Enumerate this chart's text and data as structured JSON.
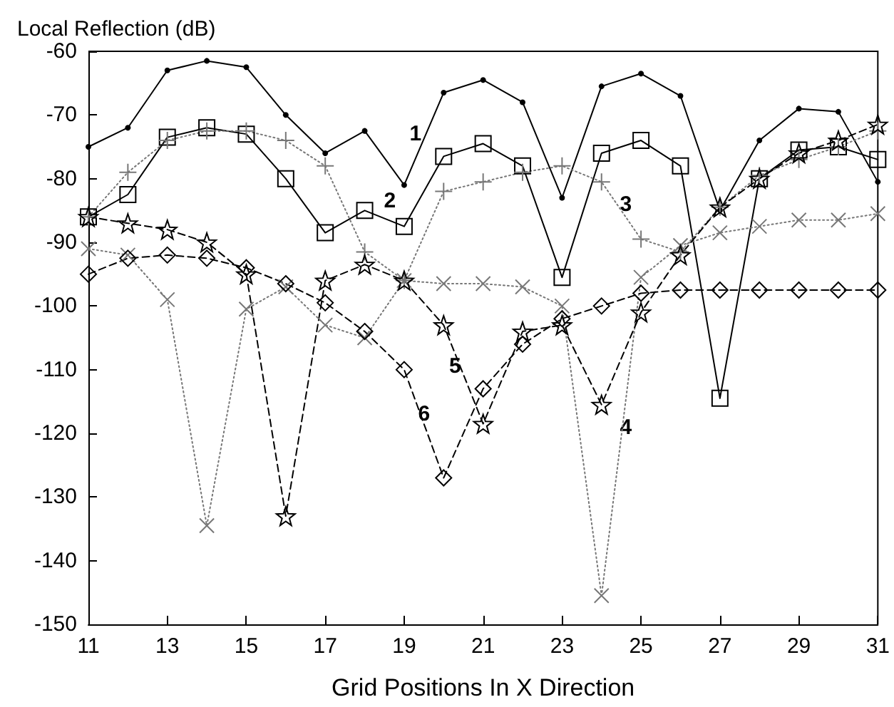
{
  "chart_data": {
    "type": "line",
    "ylabel": "Local Reflection (dB)",
    "xlabel": "Grid Positions In X Direction",
    "x": [
      11,
      12,
      13,
      14,
      15,
      16,
      17,
      18,
      19,
      20,
      21,
      22,
      23,
      24,
      25,
      26,
      27,
      28,
      29,
      30,
      31
    ],
    "xlim": [
      11,
      31
    ],
    "xticks": [
      11,
      13,
      15,
      17,
      19,
      21,
      23,
      25,
      27,
      29,
      31
    ],
    "ylim": [
      -150,
      -60
    ],
    "yticks": [
      -150,
      -140,
      -130,
      -120,
      -110,
      -100,
      -90,
      -80,
      -70,
      -60
    ],
    "grid": false,
    "series": [
      {
        "name": "1",
        "color": "#000000",
        "marker": "circle",
        "line_style": "solid",
        "values": [
          -75,
          -72,
          -63,
          -61.5,
          -62.5,
          -70,
          -76,
          -72.5,
          -81,
          -66.5,
          -64.5,
          -68,
          -83,
          -65.5,
          -63.5,
          -67,
          -85,
          -74,
          -69,
          -69.5,
          -80.5
        ]
      },
      {
        "name": "2",
        "color": "#000000",
        "marker": "square",
        "line_style": "solid",
        "values": [
          -86,
          -82.5,
          -73.5,
          -72,
          -73,
          -80,
          -88.5,
          -85,
          -87.5,
          -76.5,
          -74.5,
          -78,
          -95.5,
          -76,
          -74,
          -78,
          -114.5,
          -80,
          -75.5,
          -75,
          -77
        ]
      },
      {
        "name": "3",
        "color": "#777777",
        "marker": "plus",
        "line_style": "dotted",
        "values": [
          -86,
          -79,
          -74,
          -72.5,
          -72.5,
          -74,
          -78,
          -91.5,
          -96,
          -82,
          -80.5,
          -79,
          -78,
          -80.5,
          -89.5,
          -91.5,
          -84.5,
          -79.5,
          -77,
          -75,
          -72.5
        ]
      },
      {
        "name": "4",
        "color": "#777777",
        "marker": "cross",
        "line_style": "dotted",
        "values": [
          -91,
          -92,
          -99,
          -134.5,
          -100.5,
          -97,
          -103,
          -105,
          -96,
          -96.5,
          -96.5,
          -97,
          -100,
          -145.5,
          -95.5,
          -90.5,
          -88.5,
          -87.5,
          -86.5,
          -86.5,
          -85.5
        ]
      },
      {
        "name": "5",
        "color": "#000000",
        "marker": "star",
        "line_style": "dashed",
        "values": [
          -86,
          -87,
          -88,
          -90,
          -95,
          -133,
          -96,
          -93.5,
          -96,
          -103,
          -118.5,
          -104,
          -103,
          -115.5,
          -101,
          -92,
          -84.5,
          -80,
          -76,
          -74,
          -71.5
        ]
      },
      {
        "name": "6",
        "color": "#000000",
        "marker": "diamond",
        "line_style": "dashed",
        "values": [
          -95,
          -92.5,
          -92,
          -92.5,
          -94,
          -96.5,
          -99.5,
          -104,
          -110,
          -127,
          -113,
          -106,
          -102,
          -100,
          -98,
          -97.5,
          -97.5,
          -97.5,
          -97.5,
          -97.5,
          -97.5
        ]
      }
    ]
  }
}
